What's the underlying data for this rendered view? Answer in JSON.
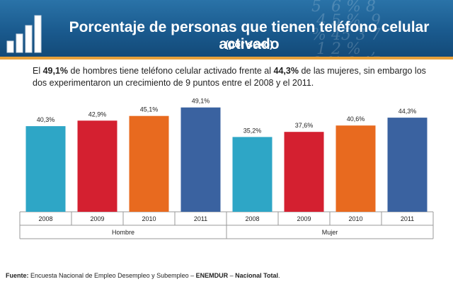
{
  "header": {
    "title": "Porcentaje de personas que tienen teléfono celular activado",
    "subtitle": "(por sexo)",
    "decoration_text": "5  6 % 8\n 4 5 %  9\n% 45 3 7\n 1 2 %  ,\n8 % 9 45"
  },
  "description": {
    "part1": "El ",
    "highlight1": "49,1%",
    "part2": " de hombres tiene teléfono celular activado frente al ",
    "highlight2": "44,3%",
    "part3": " de las mujeres, sin embargo los dos experimentaron un crecimiento de 9 puntos entre el 2008 y el 2011."
  },
  "chart_data": {
    "type": "bar",
    "title": "",
    "xlabel": "",
    "ylabel": "",
    "ylim": [
      0,
      55
    ],
    "grid": false,
    "groups": [
      {
        "name": "Hombre",
        "categories": [
          "2008",
          "2009",
          "2010",
          "2011"
        ],
        "values": [
          40.3,
          42.9,
          45.1,
          49.1
        ],
        "labels": [
          "40,3%",
          "42,9%",
          "45,1%",
          "49,1%"
        ]
      },
      {
        "name": "Mujer",
        "categories": [
          "2008",
          "2009",
          "2010",
          "2011"
        ],
        "values": [
          35.2,
          37.6,
          40.6,
          44.3
        ],
        "labels": [
          "35,2%",
          "37,6%",
          "40,6%",
          "44,3%"
        ]
      }
    ],
    "colors": [
      "#2ea6c6",
      "#d42030",
      "#e86a1f",
      "#3a62a0"
    ]
  },
  "source": {
    "label": "Fuente:",
    "text": " Encuesta Nacional de Empleo Desempleo y Subempleo – ",
    "bold1": "ENEMDUR",
    "sep": " – ",
    "bold2": "Nacional Total",
    "end": "."
  }
}
